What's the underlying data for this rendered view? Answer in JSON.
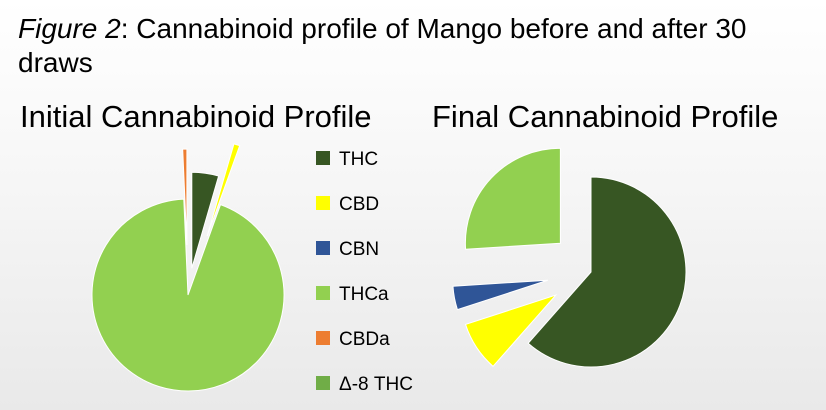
{
  "caption": {
    "figure_label": "Figure 2",
    "text": ": Cannabinoid profile of Mango before and after 30 draws"
  },
  "chart_data": [
    {
      "type": "pie",
      "title": "Initial Cannabinoid Profile",
      "categories": [
        "THC",
        "CBD",
        "CBN",
        "THCa",
        "CBDa",
        "Δ-8 THC"
      ],
      "values": [
        4.5,
        1.0,
        0.0,
        93.8,
        0.7,
        0.0
      ],
      "exploded": true,
      "legend": "right"
    },
    {
      "type": "pie",
      "title": "Final Cannabinoid Profile",
      "categories": [
        "THC",
        "CBD",
        "CBN",
        "THCa",
        "CBDa",
        "Δ-8 THC"
      ],
      "values": [
        61.5,
        8.5,
        4.0,
        26.0,
        0.0,
        0.0
      ],
      "exploded": true,
      "legend": "left"
    }
  ],
  "legend": {
    "items": [
      {
        "label": "THC",
        "color": "#375623"
      },
      {
        "label": "CBD",
        "color": "#FFFF00"
      },
      {
        "label": "CBN",
        "color": "#2F5597"
      },
      {
        "label": "THCa",
        "color": "#92D050"
      },
      {
        "label": "CBDa",
        "color": "#ED7D31"
      },
      {
        "label": "Δ-8 THC",
        "color": "#70AD47"
      }
    ]
  }
}
